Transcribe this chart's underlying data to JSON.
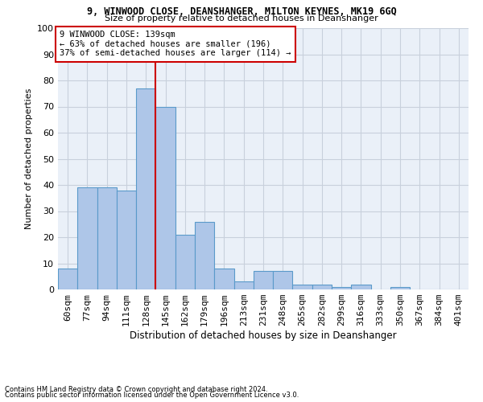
{
  "title1": "9, WINWOOD CLOSE, DEANSHANGER, MILTON KEYNES, MK19 6GQ",
  "title2": "Size of property relative to detached houses in Deanshanger",
  "xlabel": "Distribution of detached houses by size in Deanshanger",
  "ylabel": "Number of detached properties",
  "bar_labels": [
    "60sqm",
    "77sqm",
    "94sqm",
    "111sqm",
    "128sqm",
    "145sqm",
    "162sqm",
    "179sqm",
    "196sqm",
    "213sqm",
    "231sqm",
    "248sqm",
    "265sqm",
    "282sqm",
    "299sqm",
    "316sqm",
    "333sqm",
    "350sqm",
    "367sqm",
    "384sqm",
    "401sqm"
  ],
  "bar_values": [
    8,
    39,
    39,
    38,
    77,
    70,
    21,
    26,
    8,
    3,
    7,
    7,
    2,
    2,
    1,
    2,
    0,
    1,
    0,
    0,
    0
  ],
  "bar_color": "#aec6e8",
  "bar_edge_color": "#5a9aca",
  "vline_x": 4.5,
  "vline_color": "#cc0000",
  "annotation_text": "9 WINWOOD CLOSE: 139sqm\n← 63% of detached houses are smaller (196)\n37% of semi-detached houses are larger (114) →",
  "annotation_box_color": "#ffffff",
  "annotation_box_edge": "#cc0000",
  "ylim": [
    0,
    100
  ],
  "yticks": [
    0,
    10,
    20,
    30,
    40,
    50,
    60,
    70,
    80,
    90,
    100
  ],
  "grid_color": "#c8d0dc",
  "background_color": "#eaf0f8",
  "footnote1": "Contains HM Land Registry data © Crown copyright and database right 2024.",
  "footnote2": "Contains public sector information licensed under the Open Government Licence v3.0."
}
